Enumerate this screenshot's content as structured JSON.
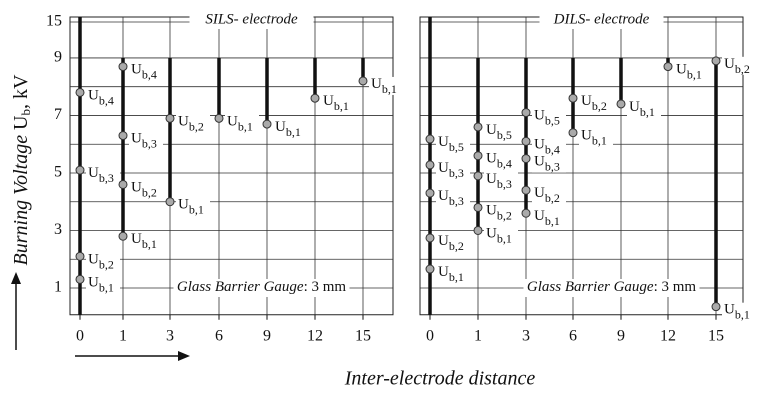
{
  "y_label": {
    "italic": "Burning Voltage",
    "symbol": "U",
    "sub": "b",
    "rest": ", kV"
  },
  "x_label": "Inter-electrode distance",
  "chart_data": [
    {
      "type": "scatter",
      "title": "SILS- electrode",
      "note": {
        "italic": "Glass Barrier Gauge",
        "rest": ": 3 mm"
      },
      "categories": [
        "0",
        "1",
        "3",
        "6",
        "9",
        "12",
        "15"
      ],
      "ylim": [
        0,
        15
      ],
      "y_break": [
        9.5,
        14.25
      ],
      "yticks": [
        1,
        3,
        5,
        7,
        9,
        15
      ],
      "minor_yticks": [
        2,
        4,
        6,
        8
      ],
      "show_ytick_labels": true,
      "grid": true,
      "points": [
        {
          "x": "0",
          "value": 1.3,
          "label": "Ub,1"
        },
        {
          "x": "0",
          "value": 2.1,
          "label": "Ub,2"
        },
        {
          "x": "0",
          "value": 5.1,
          "label": "Ub,3"
        },
        {
          "x": "0",
          "value": 7.8,
          "label": "Ub,4"
        },
        {
          "x": "1",
          "value": 2.8,
          "label": "Ub,1"
        },
        {
          "x": "1",
          "value": 4.6,
          "label": "Ub,2"
        },
        {
          "x": "1",
          "value": 6.3,
          "label": "Ub,3"
        },
        {
          "x": "1",
          "value": 8.7,
          "label": "Ub,4"
        },
        {
          "x": "3",
          "value": 4.0,
          "label": "Ub,1"
        },
        {
          "x": "3",
          "value": 6.9,
          "label": "Ub,2"
        },
        {
          "x": "6",
          "value": 6.9,
          "label": "Ub,1"
        },
        {
          "x": "9",
          "value": 6.7,
          "label": "Ub,1"
        },
        {
          "x": "12",
          "value": 7.6,
          "label": "Ub,1"
        },
        {
          "x": "15",
          "value": 8.2,
          "label": "Ub,1"
        }
      ]
    },
    {
      "type": "scatter",
      "title": "DILS- electrode",
      "note": {
        "italic": "Glass Barrier Gauge",
        "rest": ": 3 mm"
      },
      "categories": [
        "0",
        "1",
        "3",
        "6",
        "9",
        "12",
        "15"
      ],
      "ylim": [
        0,
        15
      ],
      "y_break": [
        9.5,
        14.25
      ],
      "yticks": [
        1,
        3,
        5,
        7,
        9,
        15
      ],
      "minor_yticks": [
        2,
        4,
        6,
        8
      ],
      "show_ytick_labels": false,
      "grid": true,
      "points": [
        {
          "x": "0",
          "value": 1.66,
          "label": "Ub,1"
        },
        {
          "x": "0",
          "value": 2.74,
          "label": "Ub,2"
        },
        {
          "x": "0",
          "value": 4.3,
          "label": "Ub,3"
        },
        {
          "x": "0",
          "value": 5.28,
          "label": "Ub,3"
        },
        {
          "x": "0",
          "value": 6.18,
          "label": "Ub,5"
        },
        {
          "x": "1",
          "value": 3.0,
          "label": "Ub,1"
        },
        {
          "x": "1",
          "value": 3.8,
          "label": "Ub,2"
        },
        {
          "x": "1",
          "value": 4.9,
          "label": "Ub,3"
        },
        {
          "x": "1",
          "value": 5.6,
          "label": "Ub,4"
        },
        {
          "x": "1",
          "value": 6.6,
          "label": "Ub,5"
        },
        {
          "x": "3",
          "value": 3.6,
          "label": "Ub,1"
        },
        {
          "x": "3",
          "value": 4.4,
          "label": "Ub,2"
        },
        {
          "x": "3",
          "value": 5.5,
          "label": "Ub,3"
        },
        {
          "x": "3",
          "value": 6.1,
          "label": "Ub,4"
        },
        {
          "x": "3",
          "value": 7.1,
          "label": "Ub,5"
        },
        {
          "x": "6",
          "value": 6.4,
          "label": "Ub,1"
        },
        {
          "x": "6",
          "value": 7.6,
          "label": "Ub,2"
        },
        {
          "x": "9",
          "value": 7.4,
          "label": "Ub,1"
        },
        {
          "x": "12",
          "value": 8.7,
          "label": "Ub,1"
        },
        {
          "x": "15",
          "value": 0.35,
          "label": "Ub,1"
        },
        {
          "x": "15",
          "value": 8.9,
          "label": "Ub,2"
        }
      ]
    }
  ]
}
